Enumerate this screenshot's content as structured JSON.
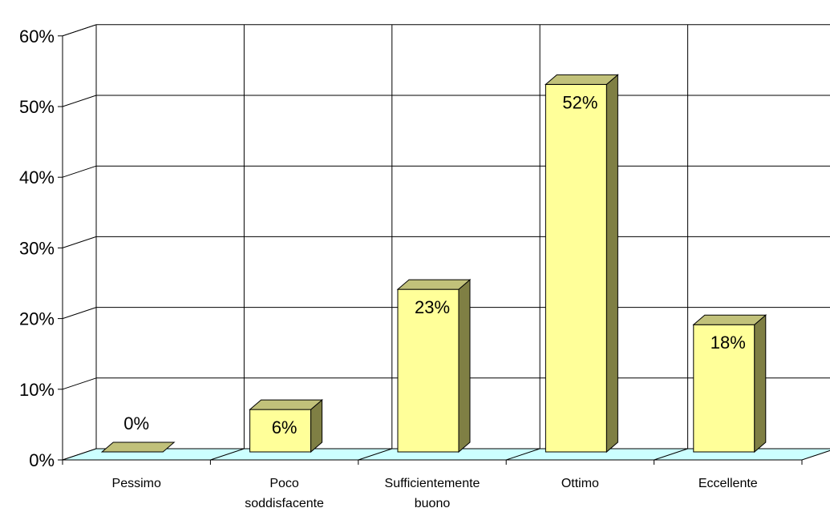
{
  "chart_data": {
    "type": "bar",
    "categories": [
      "Pessimo",
      "Poco soddisfacente",
      "Sufficientemente buono",
      "Ottimo",
      "Eccellente"
    ],
    "category_lines": [
      [
        "Pessimo"
      ],
      [
        "Poco",
        "soddisfacente"
      ],
      [
        "Sufficientemente",
        "buono"
      ],
      [
        "Ottimo"
      ],
      [
        "Eccellente"
      ]
    ],
    "values": [
      0,
      6,
      23,
      52,
      18
    ],
    "data_labels": [
      "0%",
      "6%",
      "23%",
      "52%",
      "18%"
    ],
    "y_ticks": [
      "0%",
      "10%",
      "20%",
      "30%",
      "40%",
      "50%",
      "60%"
    ],
    "ylim": [
      0,
      60
    ],
    "grid": true,
    "style": "3d-column",
    "colors": {
      "bar_front": "#ffff99",
      "bar_side": "#7f7f44",
      "bar_top": "#c1c17a",
      "floor": "#ccffff",
      "grid": "#000000"
    }
  }
}
